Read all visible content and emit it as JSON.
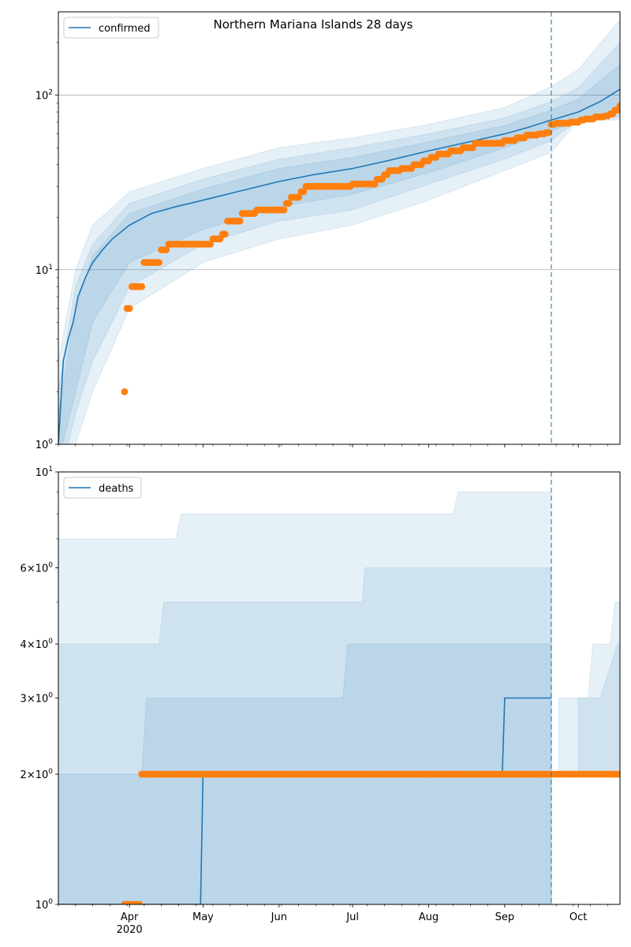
{
  "title": "Northern Mariana Islands 28 days",
  "colors": {
    "model": "#1f77b4",
    "observed": "#ff7f0e",
    "band": "#1f77b4",
    "grid": "#b0b0b0"
  },
  "x_axis": {
    "date_range": [
      "2020-03-03",
      "2020-10-18"
    ],
    "ticks": [
      {
        "date": "2020-04-01",
        "label": "Apr",
        "sublabel": "2020"
      },
      {
        "date": "2020-05-01",
        "label": "May",
        "sublabel": ""
      },
      {
        "date": "2020-06-01",
        "label": "Jun",
        "sublabel": ""
      },
      {
        "date": "2020-07-01",
        "label": "Jul",
        "sublabel": ""
      },
      {
        "date": "2020-08-01",
        "label": "Aug",
        "sublabel": ""
      },
      {
        "date": "2020-09-01",
        "label": "Sep",
        "sublabel": ""
      },
      {
        "date": "2020-10-01",
        "label": "Oct",
        "sublabel": ""
      }
    ],
    "forecast_start": "2020-09-20"
  },
  "chart_data": [
    {
      "type": "line",
      "legend": "confirmed",
      "legend_position": "upper-left",
      "yscale": "log",
      "ylim": [
        1,
        300
      ],
      "y_ticks": [
        {
          "value": 1,
          "label": "10^0"
        },
        {
          "value": 10,
          "label": "10^1"
        },
        {
          "value": 100,
          "label": "10^2"
        }
      ],
      "grid": "major-y",
      "model_line": [
        [
          "2020-03-03",
          1
        ],
        [
          "2020-03-05",
          3
        ],
        [
          "2020-03-07",
          4
        ],
        [
          "2020-03-09",
          5
        ],
        [
          "2020-03-11",
          7
        ],
        [
          "2020-03-14",
          9
        ],
        [
          "2020-03-17",
          11
        ],
        [
          "2020-03-21",
          13
        ],
        [
          "2020-03-25",
          15
        ],
        [
          "2020-04-01",
          18
        ],
        [
          "2020-04-10",
          21
        ],
        [
          "2020-04-20",
          23
        ],
        [
          "2020-05-01",
          25
        ],
        [
          "2020-05-15",
          28
        ],
        [
          "2020-06-01",
          32
        ],
        [
          "2020-06-15",
          35
        ],
        [
          "2020-07-01",
          38
        ],
        [
          "2020-07-15",
          42
        ],
        [
          "2020-08-01",
          48
        ],
        [
          "2020-08-15",
          53
        ],
        [
          "2020-09-01",
          60
        ],
        [
          "2020-09-10",
          65
        ],
        [
          "2020-09-20",
          72
        ],
        [
          "2020-10-01",
          80
        ],
        [
          "2020-10-10",
          92
        ],
        [
          "2020-10-18",
          108
        ]
      ],
      "bands": [
        {
          "level": "outer",
          "upper": [
            [
              "2020-03-03",
              3
            ],
            [
              "2020-03-10",
              10
            ],
            [
              "2020-03-17",
              18
            ],
            [
              "2020-04-01",
              28
            ],
            [
              "2020-05-01",
              38
            ],
            [
              "2020-06-01",
              50
            ],
            [
              "2020-07-01",
              57
            ],
            [
              "2020-08-01",
              68
            ],
            [
              "2020-09-01",
              85
            ],
            [
              "2020-09-20",
              112
            ],
            [
              "2020-10-01",
              140
            ],
            [
              "2020-10-18",
              270
            ]
          ],
          "lower": [
            [
              "2020-03-03",
              0.5
            ],
            [
              "2020-03-10",
              1
            ],
            [
              "2020-03-17",
              2
            ],
            [
              "2020-04-01",
              6
            ],
            [
              "2020-05-01",
              11
            ],
            [
              "2020-06-01",
              15
            ],
            [
              "2020-07-01",
              18
            ],
            [
              "2020-08-01",
              25
            ],
            [
              "2020-09-01",
              37
            ],
            [
              "2020-09-20",
              47
            ],
            [
              "2020-10-01",
              72
            ],
            [
              "2020-10-18",
              72
            ]
          ]
        },
        {
          "level": "middle",
          "upper": [
            [
              "2020-03-03",
              2
            ],
            [
              "2020-03-10",
              8
            ],
            [
              "2020-03-17",
              14
            ],
            [
              "2020-04-01",
              24
            ],
            [
              "2020-05-01",
              33
            ],
            [
              "2020-06-01",
              43
            ],
            [
              "2020-07-01",
              50
            ],
            [
              "2020-08-01",
              60
            ],
            [
              "2020-09-01",
              74
            ],
            [
              "2020-09-20",
              92
            ],
            [
              "2020-10-01",
              110
            ],
            [
              "2020-10-18",
              200
            ]
          ],
          "lower": [
            [
              "2020-03-03",
              0.6
            ],
            [
              "2020-03-10",
              1.5
            ],
            [
              "2020-03-17",
              3
            ],
            [
              "2020-04-01",
              8
            ],
            [
              "2020-05-01",
              14
            ],
            [
              "2020-06-01",
              19
            ],
            [
              "2020-07-01",
              22
            ],
            [
              "2020-08-01",
              31
            ],
            [
              "2020-09-01",
              43
            ],
            [
              "2020-09-20",
              55
            ],
            [
              "2020-10-01",
              72
            ],
            [
              "2020-10-18",
              75
            ]
          ]
        },
        {
          "level": "inner",
          "upper": [
            [
              "2020-03-03",
              1.5
            ],
            [
              "2020-03-10",
              6
            ],
            [
              "2020-03-17",
              12
            ],
            [
              "2020-04-01",
              21
            ],
            [
              "2020-05-01",
              29
            ],
            [
              "2020-06-01",
              38
            ],
            [
              "2020-07-01",
              44
            ],
            [
              "2020-08-01",
              54
            ],
            [
              "2020-09-01",
              67
            ],
            [
              "2020-09-20",
              82
            ],
            [
              "2020-10-01",
              95
            ],
            [
              "2020-10-18",
              150
            ]
          ],
          "lower": [
            [
              "2020-03-03",
              0.8
            ],
            [
              "2020-03-10",
              2
            ],
            [
              "2020-03-17",
              5
            ],
            [
              "2020-04-01",
              11
            ],
            [
              "2020-05-01",
              17
            ],
            [
              "2020-06-01",
              23
            ],
            [
              "2020-07-01",
              27
            ],
            [
              "2020-08-01",
              36
            ],
            [
              "2020-09-01",
              50
            ],
            [
              "2020-09-20",
              62
            ],
            [
              "2020-10-01",
              72
            ],
            [
              "2020-10-18",
              80
            ]
          ]
        }
      ],
      "observed_steps": [
        [
          "2020-03-30",
          2
        ],
        [
          "2020-03-31",
          6
        ],
        [
          "2020-04-02",
          8
        ],
        [
          "2020-04-07",
          11
        ],
        [
          "2020-04-14",
          13
        ],
        [
          "2020-04-17",
          14
        ],
        [
          "2020-05-05",
          15
        ],
        [
          "2020-05-09",
          16
        ],
        [
          "2020-05-11",
          19
        ],
        [
          "2020-05-17",
          21
        ],
        [
          "2020-05-23",
          22
        ],
        [
          "2020-06-04",
          24
        ],
        [
          "2020-06-06",
          26
        ],
        [
          "2020-06-10",
          28
        ],
        [
          "2020-06-12",
          30
        ],
        [
          "2020-07-01",
          31
        ],
        [
          "2020-07-11",
          33
        ],
        [
          "2020-07-14",
          35
        ],
        [
          "2020-07-16",
          37
        ],
        [
          "2020-07-21",
          38
        ],
        [
          "2020-07-26",
          40
        ],
        [
          "2020-07-30",
          42
        ],
        [
          "2020-08-02",
          44
        ],
        [
          "2020-08-05",
          46
        ],
        [
          "2020-08-10",
          48
        ],
        [
          "2020-08-15",
          50
        ],
        [
          "2020-08-20",
          53
        ],
        [
          "2020-09-01",
          55
        ],
        [
          "2020-09-06",
          57
        ],
        [
          "2020-09-10",
          59
        ],
        [
          "2020-09-15",
          60
        ],
        [
          "2020-09-18",
          61
        ],
        [
          "2020-09-20",
          68
        ],
        [
          "2020-09-22",
          69
        ],
        [
          "2020-09-28",
          70
        ],
        [
          "2020-10-02",
          72
        ],
        [
          "2020-10-04",
          73
        ],
        [
          "2020-10-08",
          75
        ],
        [
          "2020-10-12",
          76
        ],
        [
          "2020-10-14",
          78
        ],
        [
          "2020-10-16",
          82
        ],
        [
          "2020-10-18",
          87
        ]
      ]
    },
    {
      "type": "line",
      "legend": "deaths",
      "legend_position": "upper-left",
      "yscale": "log",
      "ylim": [
        1,
        10
      ],
      "y_ticks": [
        {
          "value": 1,
          "label": "10^0"
        },
        {
          "value": 2,
          "label": "2×10^0"
        },
        {
          "value": 3,
          "label": "3×10^0"
        },
        {
          "value": 4,
          "label": "4×10^0"
        },
        {
          "value": 6,
          "label": "6×10^0"
        },
        {
          "value": 10,
          "label": "10^1"
        }
      ],
      "grid": "none",
      "model_line": [
        [
          "2020-03-03",
          1
        ],
        [
          "2020-04-30",
          1
        ],
        [
          "2020-05-01",
          2
        ],
        [
          "2020-08-31",
          2
        ],
        [
          "2020-09-01",
          3
        ],
        [
          "2020-09-20",
          3
        ]
      ],
      "bands": [
        {
          "level": "outer",
          "upper": [
            [
              "2020-03-03",
              7
            ],
            [
              "2020-04-20",
              7
            ],
            [
              "2020-04-22",
              8
            ],
            [
              "2020-08-11",
              8
            ],
            [
              "2020-08-13",
              9
            ],
            [
              "2020-09-20",
              9
            ]
          ],
          "lower": [
            [
              "2020-03-03",
              1
            ],
            [
              "2020-09-20",
              1
            ]
          ]
        },
        {
          "level": "middle",
          "upper": [
            [
              "2020-03-03",
              4
            ],
            [
              "2020-04-13",
              4
            ],
            [
              "2020-04-15",
              5
            ],
            [
              "2020-07-05",
              5
            ],
            [
              "2020-07-06",
              6
            ],
            [
              "2020-09-20",
              6
            ]
          ],
          "lower": [
            [
              "2020-03-03",
              1
            ],
            [
              "2020-09-20",
              1
            ]
          ]
        },
        {
          "level": "inner",
          "upper": [
            [
              "2020-03-03",
              2
            ],
            [
              "2020-04-06",
              2
            ],
            [
              "2020-04-08",
              3
            ],
            [
              "2020-06-27",
              3
            ],
            [
              "2020-06-29",
              4
            ],
            [
              "2020-09-20",
              4
            ]
          ],
          "lower": [
            [
              "2020-03-03",
              1
            ],
            [
              "2020-09-20",
              1
            ]
          ]
        },
        {
          "level": "outer",
          "upper": [
            [
              "2020-09-23",
              3
            ],
            [
              "2020-10-05",
              3
            ],
            [
              "2020-10-07",
              4
            ],
            [
              "2020-10-14",
              4
            ],
            [
              "2020-10-16",
              5
            ],
            [
              "2020-10-18",
              5
            ]
          ],
          "lower": [
            [
              "2020-09-23",
              2
            ],
            [
              "2020-10-18",
              2
            ]
          ]
        },
        {
          "level": "inner",
          "upper": [
            [
              "2020-10-01",
              3
            ],
            [
              "2020-10-10",
              3
            ],
            [
              "2020-10-17",
              4
            ],
            [
              "2020-10-18",
              4
            ]
          ],
          "lower": [
            [
              "2020-10-01",
              2
            ],
            [
              "2020-10-18",
              2
            ]
          ]
        }
      ],
      "observed_steps": [
        [
          "2020-03-30",
          1
        ],
        [
          "2020-04-06",
          2
        ],
        [
          "2020-10-18",
          2
        ]
      ]
    }
  ]
}
